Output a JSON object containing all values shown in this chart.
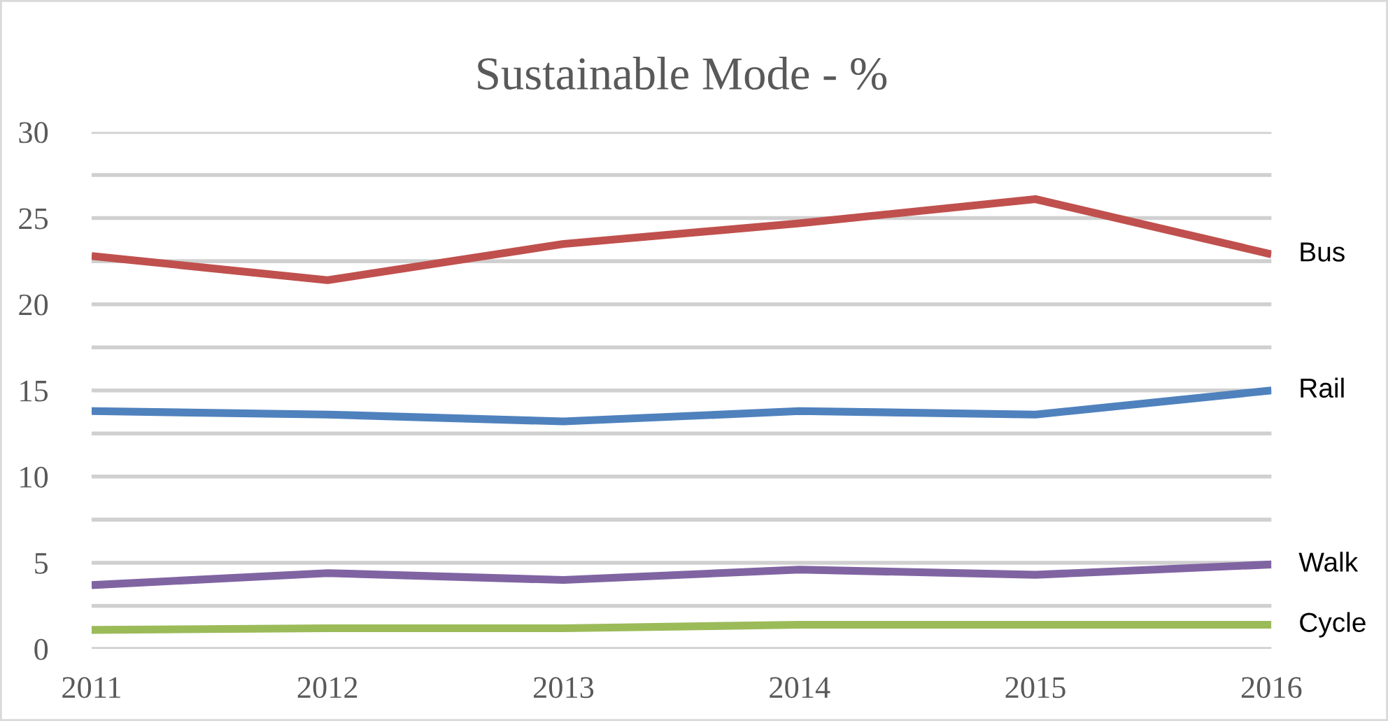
{
  "chart_data": {
    "type": "line",
    "title": "Sustainable Mode - %",
    "x": [
      2011,
      2012,
      2013,
      2014,
      2015,
      2016
    ],
    "xlim": [
      2011,
      2016
    ],
    "xticks": [
      2011,
      2012,
      2013,
      2014,
      2015,
      2016
    ],
    "ylim": [
      0,
      30
    ],
    "yticks": [
      0,
      {
        "value": 2.5,
        "label": null
      },
      5,
      {
        "value": 7.5,
        "label": null
      },
      10,
      {
        "value": 12.5,
        "label": null
      },
      15,
      {
        "value": 17.5,
        "label": null
      },
      20,
      {
        "value": 22.5,
        "label": null
      },
      25,
      {
        "value": 27.5,
        "label": null
      },
      30
    ],
    "grid": "y",
    "legend": false,
    "marker": "none",
    "line_style": "solid",
    "series": [
      {
        "name": "Bus",
        "color": "#c0504d",
        "values": [
          22.8,
          21.4,
          23.5,
          24.7,
          26.1,
          22.9
        ]
      },
      {
        "name": "Rail",
        "color": "#4f81bd",
        "values": [
          13.8,
          13.6,
          13.2,
          13.8,
          13.6,
          15.0
        ]
      },
      {
        "name": "Walk",
        "color": "#8064a2",
        "values": [
          3.7,
          4.4,
          4.0,
          4.6,
          4.3,
          4.9
        ]
      },
      {
        "name": "Cycle",
        "color": "#9bbb59",
        "values": [
          1.1,
          1.2,
          1.2,
          1.4,
          1.4,
          1.4
        ]
      }
    ]
  }
}
